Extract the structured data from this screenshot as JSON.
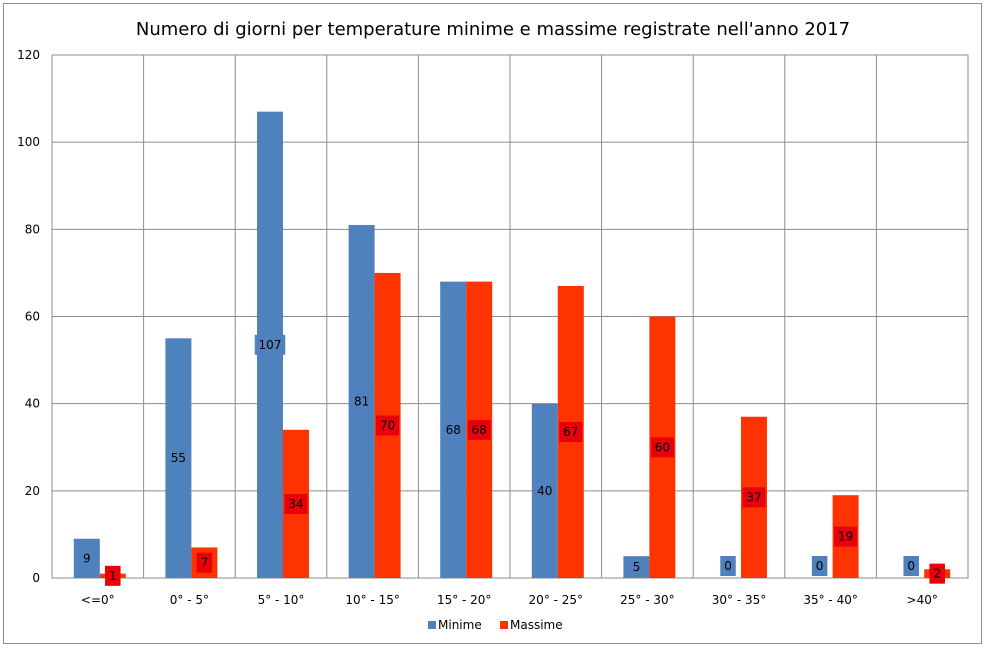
{
  "chart_data": {
    "type": "bar",
    "title": "Numero di giorni per temperature minime e massime registrate nell'anno 2017",
    "categories": [
      "<=0°",
      "0° - 5°",
      "5° - 10°",
      "10° - 15°",
      "15° - 20°",
      "20° - 25°",
      "25° - 30°",
      "30° - 35°",
      "35° - 40°",
      ">40°"
    ],
    "series": [
      {
        "name": "Minime",
        "color": "#4f81bd",
        "values": [
          9,
          55,
          107,
          81,
          68,
          40,
          5,
          0,
          0,
          0
        ]
      },
      {
        "name": "Massime",
        "color": "#ff3300",
        "values": [
          1,
          7,
          34,
          70,
          68,
          67,
          60,
          37,
          19,
          2
        ]
      }
    ],
    "data_labels": {
      "Minime": [
        "9",
        "55",
        "107",
        "81",
        "68",
        "40",
        "5",
        "0",
        "0",
        "0"
      ],
      "Massime": [
        "1",
        "7",
        "34",
        "70",
        "68",
        "67",
        "60",
        "37",
        "19",
        "2"
      ]
    },
    "ylim": [
      0,
      120
    ],
    "yticks": [
      0,
      20,
      40,
      60,
      80,
      100,
      120
    ],
    "ytick_labels": [
      "0",
      "20",
      "40",
      "60",
      "80",
      "100",
      "120"
    ],
    "xlabel": "",
    "ylabel": "",
    "grid": true,
    "legend": "bottom",
    "colors": {
      "gridline": "#8c8c8c",
      "minime_label_bg": "#4f81bd",
      "massime_label_bg": "#e8000b"
    }
  }
}
